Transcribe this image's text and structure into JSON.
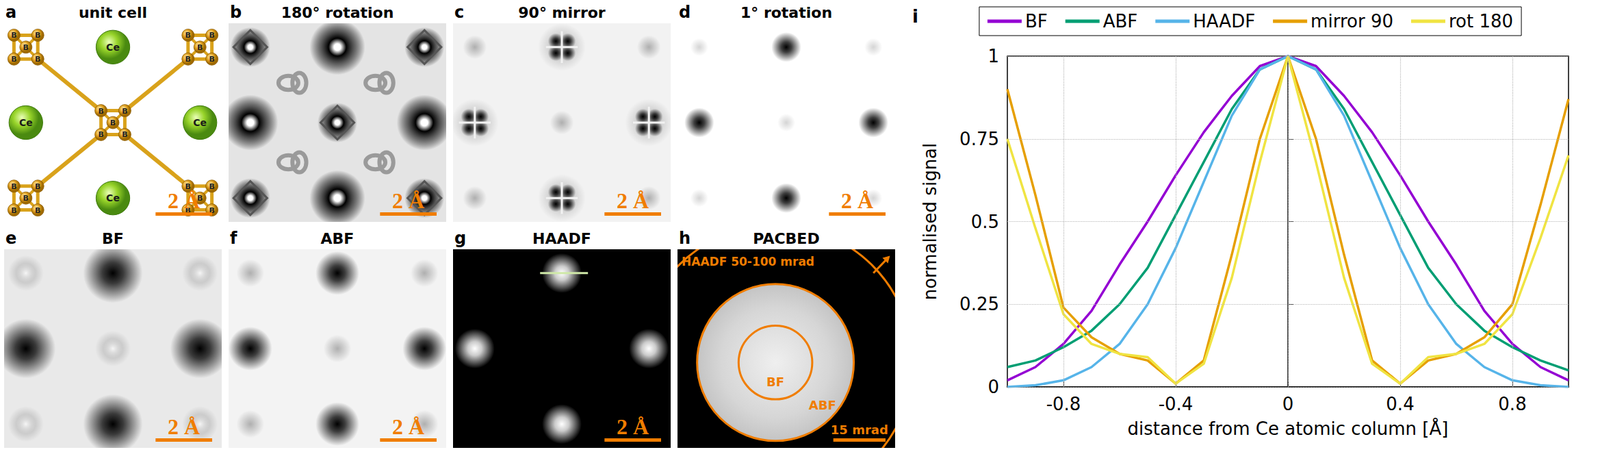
{
  "panels": [
    {
      "letter": "a",
      "title": "unit cell",
      "scale_bar": "2 Å",
      "atom_labels": {
        "boron": "B",
        "cerium": "Ce"
      }
    },
    {
      "letter": "b",
      "title": "180° rotation",
      "scale_bar": "2 Å"
    },
    {
      "letter": "c",
      "title": "90° mirror",
      "scale_bar": "2 Å"
    },
    {
      "letter": "d",
      "title": "1° rotation",
      "scale_bar": "2 Å"
    },
    {
      "letter": "e",
      "title": "BF",
      "scale_bar": "2 Å"
    },
    {
      "letter": "f",
      "title": "ABF",
      "scale_bar": "2 Å"
    },
    {
      "letter": "g",
      "title": "HAADF",
      "scale_bar": "2 Å"
    },
    {
      "letter": "h",
      "title": "PACBED",
      "scale_bar": "15 mrad",
      "annotations": {
        "haadf": "HAADF 50-100 mrad",
        "bf": "BF",
        "abf": "ABF"
      }
    }
  ],
  "chart_data": {
    "type": "line",
    "letter": "i",
    "x_label": "distance from Ce atomic column [Å]",
    "y_label": "normalised signal",
    "x": [
      -1,
      -0.9,
      -0.8,
      -0.7,
      -0.6,
      -0.5,
      -0.4,
      -0.3,
      -0.2,
      -0.1,
      0,
      0.1,
      0.2,
      0.3,
      0.4,
      0.5,
      0.6,
      0.7,
      0.8,
      0.9,
      1
    ],
    "series": [
      {
        "name": "BF",
        "color": "#9400d3",
        "values": [
          0.02,
          0.06,
          0.13,
          0.23,
          0.37,
          0.5,
          0.64,
          0.77,
          0.88,
          0.97,
          1,
          0.97,
          0.88,
          0.77,
          0.64,
          0.5,
          0.37,
          0.23,
          0.13,
          0.06,
          0.02
        ]
      },
      {
        "name": "ABF",
        "color": "#009e73",
        "values": [
          0.06,
          0.08,
          0.12,
          0.17,
          0.25,
          0.36,
          0.52,
          0.68,
          0.84,
          0.96,
          1,
          0.96,
          0.84,
          0.68,
          0.52,
          0.36,
          0.25,
          0.17,
          0.12,
          0.08,
          0.05
        ]
      },
      {
        "name": "HAADF",
        "color": "#56b4e9",
        "values": [
          0,
          0.005,
          0.02,
          0.06,
          0.13,
          0.25,
          0.42,
          0.62,
          0.82,
          0.96,
          1,
          0.96,
          0.82,
          0.62,
          0.42,
          0.25,
          0.13,
          0.06,
          0.02,
          0.005,
          0
        ]
      },
      {
        "name": "mirror 90",
        "color": "#e69f00",
        "values": [
          0.9,
          0.58,
          0.24,
          0.15,
          0.1,
          0.08,
          0.01,
          0.08,
          0.4,
          0.75,
          1,
          0.75,
          0.4,
          0.08,
          0.01,
          0.08,
          0.1,
          0.15,
          0.25,
          0.55,
          0.87
        ]
      },
      {
        "name": "rot 180",
        "color": "#f0e442",
        "values": [
          0.75,
          0.48,
          0.22,
          0.13,
          0.1,
          0.09,
          0.01,
          0.07,
          0.33,
          0.68,
          1,
          0.68,
          0.33,
          0.07,
          0.01,
          0.09,
          0.1,
          0.13,
          0.22,
          0.45,
          0.7
        ]
      }
    ],
    "xlim": [
      -1,
      1
    ],
    "xticks": [
      -0.8,
      -0.4,
      0,
      0.4,
      0.8
    ],
    "ylim": [
      0,
      1
    ],
    "yticks": [
      0,
      0.25,
      0.5,
      0.75,
      1
    ],
    "grid": true,
    "legend": "top"
  }
}
